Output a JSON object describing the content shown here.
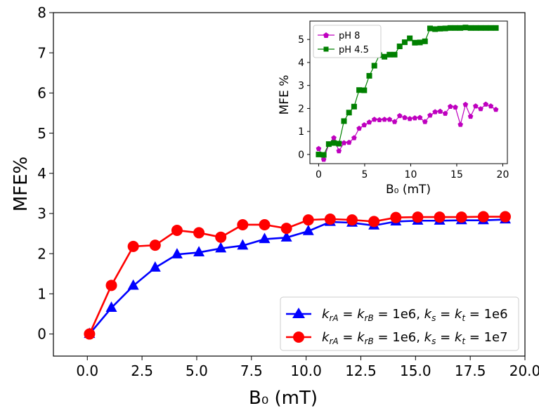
{
  "chart_data": [
    {
      "type": "line",
      "xlabel": "B₀ (mT)",
      "ylabel": "MFE%",
      "xlim": [
        -1.55,
        20
      ],
      "ylim": [
        -0.55,
        8
      ],
      "xticks": [
        "0.0",
        "2.5",
        "5.0",
        "7.5",
        "10.0",
        "12.5",
        "15.0",
        "17.5",
        "20.0"
      ],
      "yticks": [
        "0",
        "1",
        "2",
        "3",
        "4",
        "5",
        "6",
        "7",
        "8"
      ],
      "grid": false,
      "legend_position": "bottom-right",
      "x": [
        0.1,
        1.1,
        2.1,
        3.1,
        4.1,
        5.1,
        6.1,
        7.1,
        8.1,
        9.1,
        10.1,
        11.1,
        12.1,
        13.1,
        14.1,
        15.1,
        16.1,
        17.1,
        18.1,
        19.1
      ],
      "series": [
        {
          "name": "k_rA = k_rB = 1e6, k_s = k_t = 1e6",
          "color": "#0000ff",
          "marker": "triangle",
          "values": [
            0.0,
            0.65,
            1.2,
            1.65,
            1.98,
            2.03,
            2.13,
            2.2,
            2.36,
            2.4,
            2.56,
            2.79,
            2.77,
            2.7,
            2.8,
            2.82,
            2.82,
            2.83,
            2.83,
            2.85
          ]
        },
        {
          "name": "k_rA = k_rB = 1e6, k_s = k_t = 1e7",
          "color": "#ff0000",
          "marker": "circle",
          "values": [
            0.0,
            1.21,
            2.18,
            2.21,
            2.58,
            2.52,
            2.41,
            2.72,
            2.72,
            2.63,
            2.84,
            2.86,
            2.84,
            2.8,
            2.9,
            2.91,
            2.91,
            2.91,
            2.92,
            2.92
          ]
        }
      ]
    },
    {
      "type": "line",
      "xlabel": "B₀ (mT)",
      "ylabel": "MFE %",
      "xlim": [
        -0.95,
        20.5
      ],
      "ylim": [
        -0.4,
        5.8
      ],
      "xticks": [
        "0",
        "5",
        "10",
        "15",
        "20"
      ],
      "yticks": [
        "0",
        "1",
        "2",
        "3",
        "4",
        "5"
      ],
      "grid": false,
      "legend_position": "top-left",
      "series": [
        {
          "name": "pH 8",
          "color": "#bf00bf",
          "marker": "pentagon",
          "x": [
            0,
            0.55,
            1.1,
            1.65,
            2.2,
            2.75,
            3.3,
            3.85,
            4.4,
            4.95,
            5.5,
            6.05,
            6.6,
            7.15,
            7.7,
            8.25,
            8.8,
            9.35,
            9.9,
            10.45,
            11.0,
            11.55,
            12.1,
            12.65,
            13.2,
            13.75,
            14.3,
            14.85,
            15.4,
            15.95,
            16.5,
            17.05,
            17.6,
            18.15,
            18.7,
            19.25
          ],
          "values": [
            0.25,
            -0.22,
            0.45,
            0.72,
            0.15,
            0.5,
            0.52,
            0.72,
            1.13,
            1.28,
            1.4,
            1.52,
            1.5,
            1.52,
            1.52,
            1.42,
            1.68,
            1.6,
            1.55,
            1.58,
            1.6,
            1.42,
            1.7,
            1.85,
            1.87,
            1.78,
            2.08,
            2.05,
            1.3,
            2.17,
            1.65,
            2.1,
            1.98,
            2.18,
            2.1,
            1.95
          ]
        },
        {
          "name": "pH 4.5",
          "color": "#008000",
          "marker": "square",
          "x": [
            0,
            0.55,
            1.1,
            1.65,
            2.2,
            2.75,
            3.3,
            3.85,
            4.4,
            4.95,
            5.5,
            6.05,
            6.6,
            7.15,
            7.7,
            8.25,
            8.8,
            9.35,
            9.9,
            10.45,
            11.0,
            11.55,
            12.1,
            12.65,
            13.2,
            13.75,
            14.3,
            14.85,
            15.4,
            15.95,
            16.5,
            17.05,
            17.6,
            18.15,
            18.7,
            19.25
          ],
          "values": [
            0.0,
            -0.02,
            0.45,
            0.5,
            0.47,
            1.45,
            1.82,
            2.08,
            2.8,
            2.79,
            3.42,
            3.86,
            4.32,
            4.25,
            4.34,
            4.34,
            4.7,
            4.88,
            5.05,
            4.86,
            4.87,
            4.92,
            5.48,
            5.45,
            5.47,
            5.48,
            5.5,
            5.5,
            5.5,
            5.52,
            5.5,
            5.5,
            5.5,
            5.5,
            5.5,
            5.5
          ]
        }
      ]
    }
  ]
}
